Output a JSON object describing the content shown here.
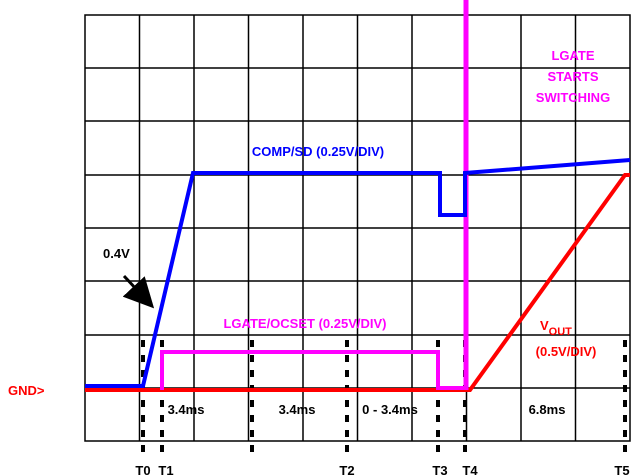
{
  "annotations": {
    "lgate_switch": [
      "LGATE",
      "STARTS",
      "SWITCHING"
    ],
    "comp": "COMP/SD (0.25V/DIV)",
    "threshold": "0.4V",
    "lgate_ocset": "LGATE/OCSET (0.25V/DIV)",
    "vout": {
      "main": "V",
      "sub": "OUT",
      "scale": "(0.5V/DIV)"
    },
    "gnd": "GND>"
  },
  "intervals": [
    "3.4ms",
    "3.4ms",
    "0 - 3.4ms",
    "6.8ms"
  ],
  "times": [
    "T0",
    "T1",
    "T2",
    "T3",
    "T4",
    "T5"
  ]
}
